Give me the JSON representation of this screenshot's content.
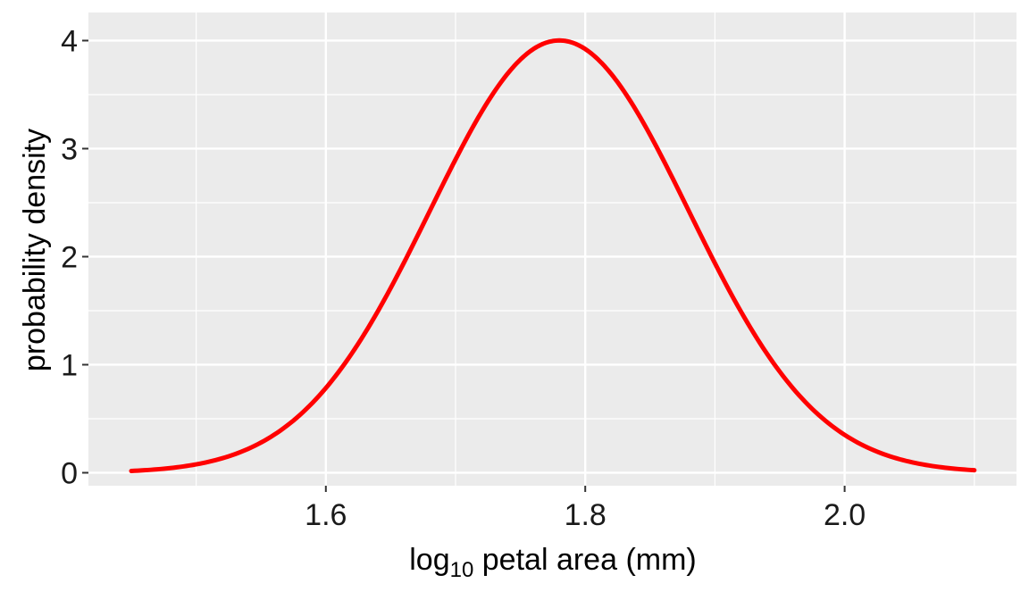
{
  "chart_data": {
    "type": "line",
    "title": "",
    "xlabel_prefix": "log",
    "xlabel_sub": "10",
    "xlabel_suffix": " petal area (mm)",
    "ylabel": "probability density",
    "xlim": [
      1.45,
      2.1
    ],
    "ylim": [
      0,
      4
    ],
    "x_ticks": [
      1.6,
      1.8,
      2.0
    ],
    "x_tick_labels": [
      "1.6",
      "1.8",
      "2.0"
    ],
    "x_minor_ticks": [
      1.5,
      1.7,
      1.9,
      2.1
    ],
    "y_ticks": [
      0,
      1,
      2,
      3,
      4
    ],
    "y_tick_labels": [
      "0",
      "1",
      "2",
      "3",
      "4"
    ],
    "y_minor_ticks": [
      0.5,
      1.5,
      2.5,
      3.5
    ],
    "grid": true,
    "series": [
      {
        "color": "#ff0000",
        "distribution": "normal",
        "mean": 1.78,
        "sd": 0.0997,
        "x_range": [
          1.45,
          2.1
        ],
        "points": [
          [
            1.45,
            0.02
          ],
          [
            1.5,
            0.08
          ],
          [
            1.55,
            0.28
          ],
          [
            1.6,
            0.79
          ],
          [
            1.65,
            1.71
          ],
          [
            1.7,
            2.89
          ],
          [
            1.75,
            3.82
          ],
          [
            1.78,
            4.0
          ],
          [
            1.8,
            3.92
          ],
          [
            1.85,
            3.13
          ],
          [
            1.9,
            1.94
          ],
          [
            1.95,
            0.94
          ],
          [
            2.0,
            0.35
          ],
          [
            2.05,
            0.1
          ],
          [
            2.1,
            0.02
          ]
        ]
      }
    ],
    "panel_background": "#ebebeb",
    "grid_color": "#ffffff"
  }
}
